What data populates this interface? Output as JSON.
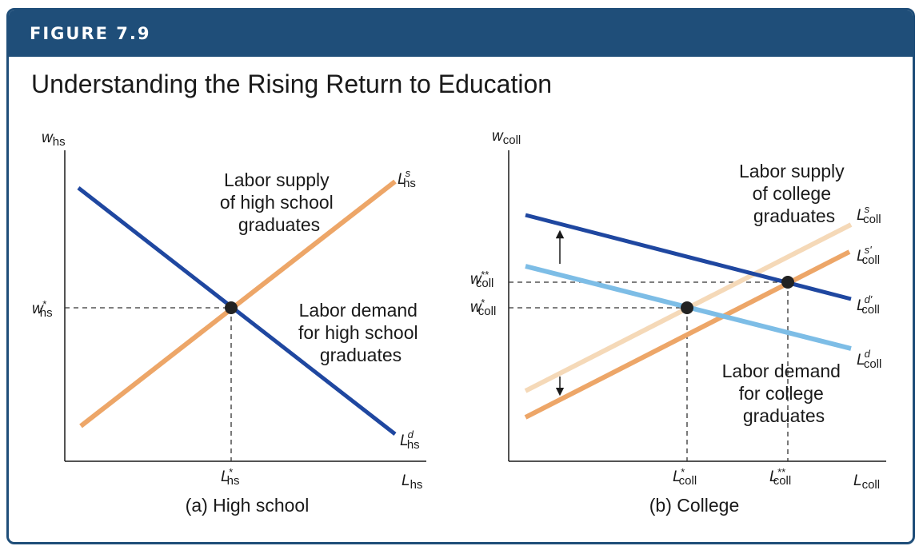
{
  "figure": {
    "label": "FIGURE 7.9",
    "title": "Understanding the Rising Return to Education"
  },
  "colors": {
    "header": "#1f4e79",
    "demand_dark": "#1f47a0",
    "demand_light": "#7dbde6",
    "supply_orange": "#eda668",
    "supply_light": "#f5d9b8"
  },
  "chart_data": [
    {
      "type": "line",
      "panel": "(a) High school",
      "caption": "(a) High school",
      "axes": {
        "y": {
          "sym": "w",
          "sub": "hs"
        },
        "x": {
          "sym": "L",
          "sub": "hs"
        }
      },
      "equilibrium": {
        "wage": {
          "sym": "w",
          "sup": "*",
          "sub": "hs"
        },
        "quantity": {
          "sym": "L",
          "sup": "*",
          "sub": "hs"
        }
      },
      "series": [
        {
          "name": "supply",
          "color": "#eda668",
          "label": {
            "sym": "L",
            "sup": "s",
            "sub": "hs"
          },
          "annotation": [
            "Labor supply",
            "of high school",
            "graduates"
          ]
        },
        {
          "name": "demand",
          "color": "#1f47a0",
          "label": {
            "sym": "L",
            "sup": "d",
            "sub": "hs"
          },
          "annotation": [
            "Labor demand",
            "for high school",
            "graduates"
          ]
        }
      ]
    },
    {
      "type": "line",
      "panel": "(b) College",
      "caption": "(b) College",
      "axes": {
        "y": {
          "sym": "w",
          "sub": "coll"
        },
        "x": {
          "sym": "L",
          "sub": "coll"
        }
      },
      "equilibria": [
        {
          "wage": {
            "sym": "w",
            "sup": "*",
            "sub": "coll"
          },
          "quantity": {
            "sym": "L",
            "sup": "*",
            "sub": "coll"
          }
        },
        {
          "wage": {
            "sym": "w",
            "sup": "**",
            "sub": "coll"
          },
          "quantity": {
            "sym": "L",
            "sup": "**",
            "sub": "coll"
          }
        }
      ],
      "series": [
        {
          "name": "supply original",
          "color": "#f5d9b8",
          "label": {
            "sym": "L",
            "sup": "s",
            "sub": "coll"
          },
          "annotation": [
            "Labor supply",
            "of college",
            "graduates"
          ]
        },
        {
          "name": "supply shifted",
          "color": "#eda668",
          "label": {
            "sym": "L",
            "sup": "s'",
            "sub": "coll"
          }
        },
        {
          "name": "demand shifted",
          "color": "#1f47a0",
          "label": {
            "sym": "L",
            "sup": "d'",
            "sub": "coll"
          }
        },
        {
          "name": "demand original",
          "color": "#7dbde6",
          "label": {
            "sym": "L",
            "sup": "d",
            "sub": "coll"
          },
          "annotation": [
            "Labor demand",
            "for college",
            "graduates"
          ]
        }
      ],
      "shifts": [
        {
          "series": "demand",
          "direction": "up"
        },
        {
          "series": "supply",
          "direction": "down"
        }
      ]
    }
  ]
}
